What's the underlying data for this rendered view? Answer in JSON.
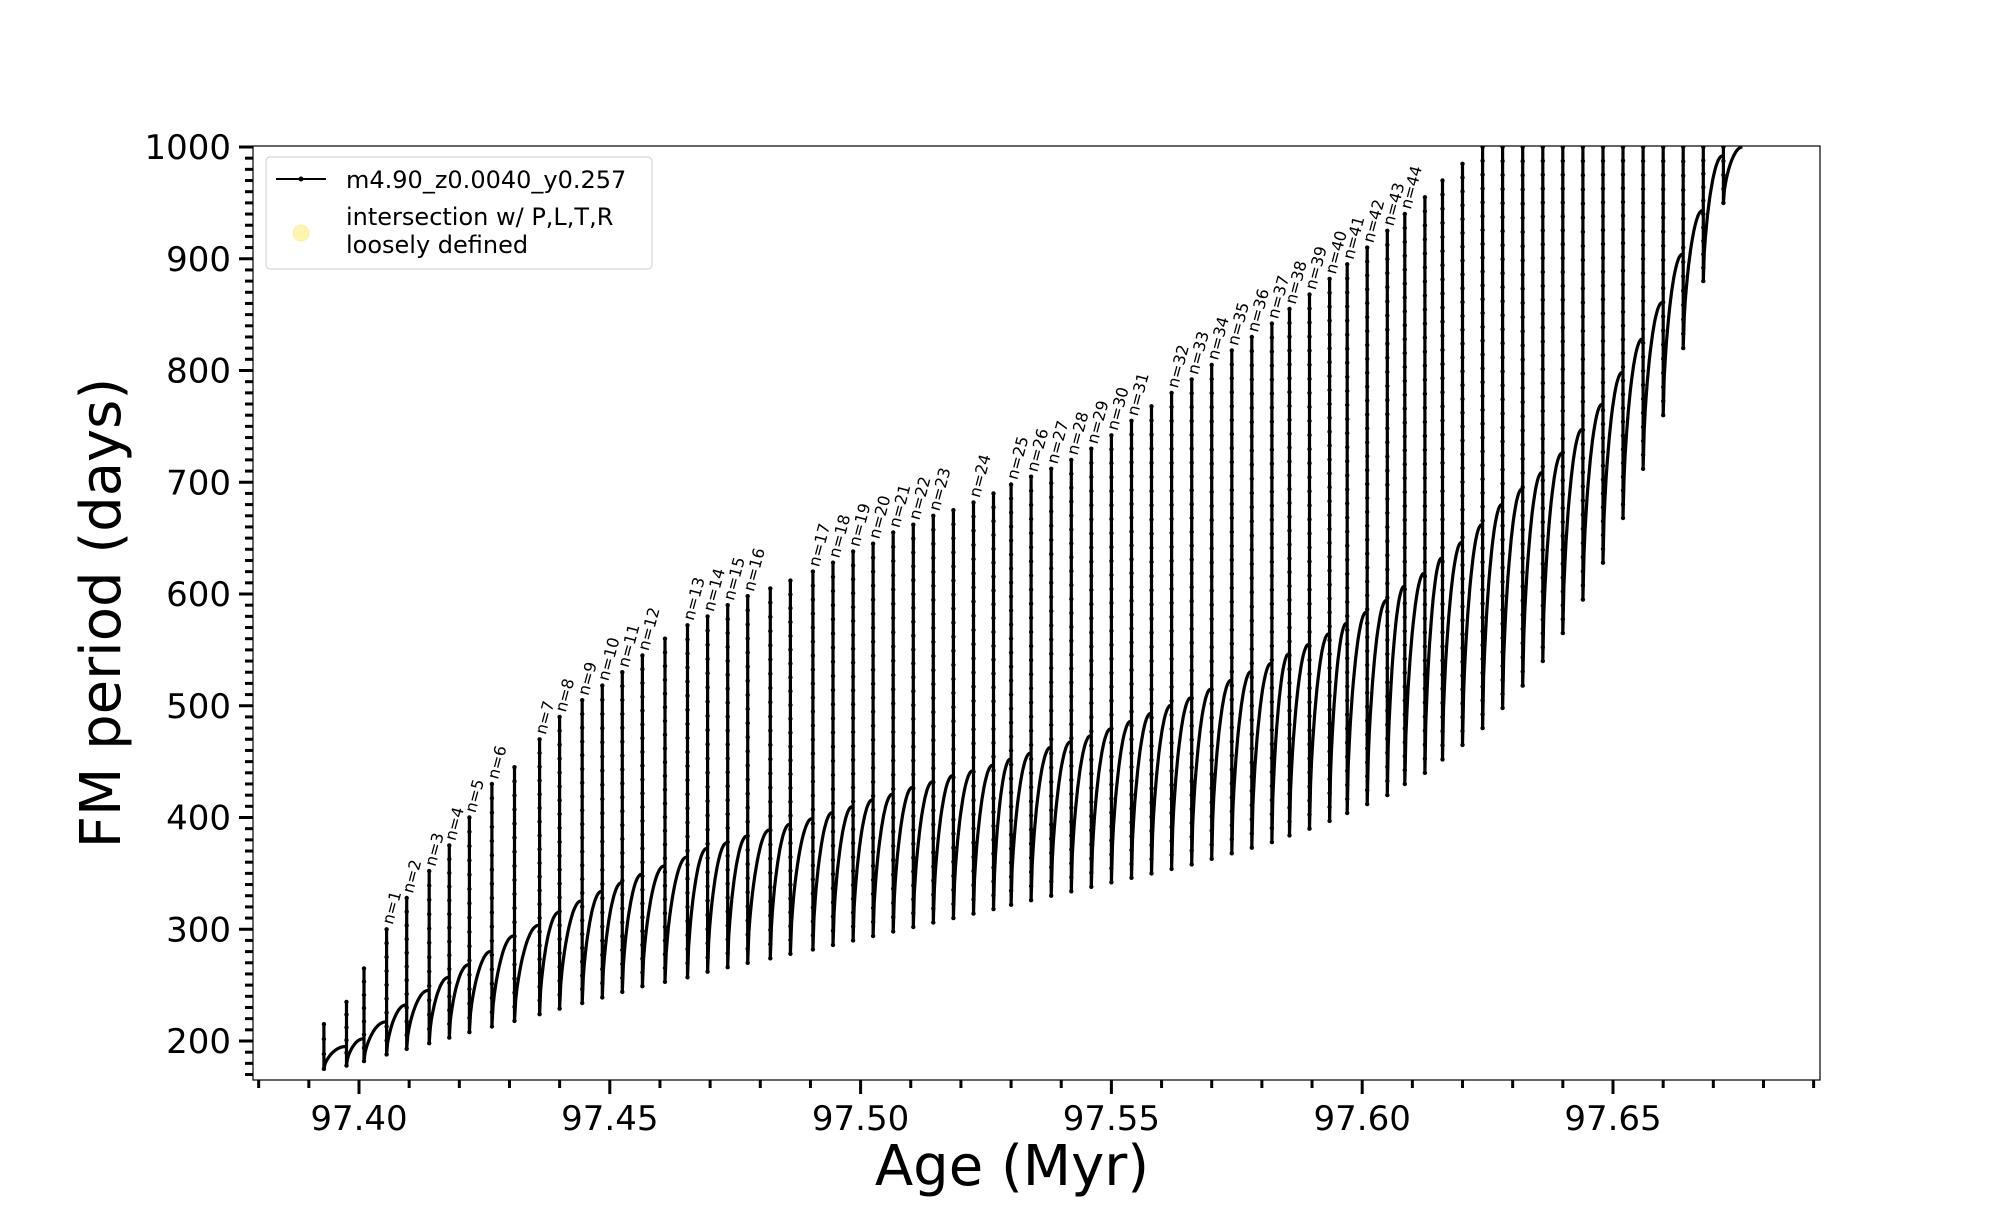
{
  "chart_data": {
    "type": "line",
    "title": "",
    "xlabel": "Age (Myr)",
    "ylabel": "FM period (days)",
    "xlim": [
      97.378,
      97.6915
    ],
    "ylim": [
      165,
      1000
    ],
    "x_ticks": [
      97.4,
      97.45,
      97.5,
      97.55,
      97.6,
      97.65
    ],
    "x_tick_labels": [
      "97.40",
      "97.45",
      "97.50",
      "97.55",
      "97.60",
      "97.65"
    ],
    "y_ticks": [
      200,
      300,
      400,
      500,
      600,
      700,
      800,
      900,
      1000
    ],
    "y_tick_labels": [
      "200",
      "300",
      "400",
      "500",
      "600",
      "700",
      "800",
      "900",
      "1000"
    ],
    "grid": false,
    "legend": {
      "placement": "top-left",
      "entries": [
        {
          "label": "m4.90_z0.0040_y0.257",
          "marker": "line-with-dots",
          "color": "#000000"
        },
        {
          "label": "intersection w/ P,L,T,R loosely defined",
          "label_lines": [
            "intersection w/ P,L,T,R",
            "loosely defined"
          ],
          "marker": "circle",
          "color": "#fff5b0"
        }
      ]
    },
    "series": [
      {
        "name": "m4.90_z0.0040_y0.257",
        "color": "#000000",
        "description": "pulse cycles: each cycle rises along an arc from its minimum to a spike maximum",
        "cycles": [
          {
            "x": 97.393,
            "p_min": 175,
            "p_max": 215
          },
          {
            "x": 97.3975,
            "p_min": 178,
            "p_max": 235
          },
          {
            "x": 97.401,
            "p_min": 182,
            "p_max": 265
          },
          {
            "x": 97.4055,
            "p_min": 188,
            "p_max": 300,
            "n": 1
          },
          {
            "x": 97.4095,
            "p_min": 193,
            "p_max": 328,
            "n": 2
          },
          {
            "x": 97.414,
            "p_min": 198,
            "p_max": 352,
            "n": 3
          },
          {
            "x": 97.418,
            "p_min": 203,
            "p_max": 375,
            "n": 4
          },
          {
            "x": 97.422,
            "p_min": 208,
            "p_max": 400,
            "n": 5
          },
          {
            "x": 97.4265,
            "p_min": 213,
            "p_max": 430,
            "n": 6
          },
          {
            "x": 97.431,
            "p_min": 218,
            "p_max": 445
          },
          {
            "x": 97.436,
            "p_min": 224,
            "p_max": 470,
            "n": 7
          },
          {
            "x": 97.44,
            "p_min": 229,
            "p_max": 490,
            "n": 8
          },
          {
            "x": 97.4445,
            "p_min": 234,
            "p_max": 505,
            "n": 9
          },
          {
            "x": 97.4485,
            "p_min": 239,
            "p_max": 518,
            "n": 10
          },
          {
            "x": 97.4525,
            "p_min": 244,
            "p_max": 530,
            "n": 11
          },
          {
            "x": 97.4565,
            "p_min": 249,
            "p_max": 545,
            "n": 12
          },
          {
            "x": 97.461,
            "p_min": 253,
            "p_max": 560
          },
          {
            "x": 97.4655,
            "p_min": 257,
            "p_max": 572,
            "n": 13
          },
          {
            "x": 97.4695,
            "p_min": 262,
            "p_max": 580,
            "n": 14
          },
          {
            "x": 97.4735,
            "p_min": 266,
            "p_max": 590,
            "n": 15
          },
          {
            "x": 97.4775,
            "p_min": 270,
            "p_max": 598,
            "n": 16
          },
          {
            "x": 97.482,
            "p_min": 274,
            "p_max": 605
          },
          {
            "x": 97.486,
            "p_min": 278,
            "p_max": 612
          },
          {
            "x": 97.4905,
            "p_min": 282,
            "p_max": 620,
            "n": 17
          },
          {
            "x": 97.4945,
            "p_min": 286,
            "p_max": 628,
            "n": 18
          },
          {
            "x": 97.4985,
            "p_min": 290,
            "p_max": 638,
            "n": 19
          },
          {
            "x": 97.5025,
            "p_min": 294,
            "p_max": 645,
            "n": 20
          },
          {
            "x": 97.5065,
            "p_min": 298,
            "p_max": 655,
            "n": 21
          },
          {
            "x": 97.5105,
            "p_min": 302,
            "p_max": 662,
            "n": 22
          },
          {
            "x": 97.5145,
            "p_min": 306,
            "p_max": 670,
            "n": 23
          },
          {
            "x": 97.5185,
            "p_min": 310,
            "p_max": 675
          },
          {
            "x": 97.5225,
            "p_min": 314,
            "p_max": 682,
            "n": 24
          },
          {
            "x": 97.5265,
            "p_min": 318,
            "p_max": 690
          },
          {
            "x": 97.53,
            "p_min": 322,
            "p_max": 698,
            "n": 25
          },
          {
            "x": 97.534,
            "p_min": 326,
            "p_max": 705,
            "n": 26
          },
          {
            "x": 97.538,
            "p_min": 330,
            "p_max": 712,
            "n": 27
          },
          {
            "x": 97.542,
            "p_min": 334,
            "p_max": 720,
            "n": 28
          },
          {
            "x": 97.546,
            "p_min": 338,
            "p_max": 730,
            "n": 29
          },
          {
            "x": 97.55,
            "p_min": 342,
            "p_max": 742,
            "n": 30
          },
          {
            "x": 97.554,
            "p_min": 346,
            "p_max": 755,
            "n": 31
          },
          {
            "x": 97.558,
            "p_min": 350,
            "p_max": 768
          },
          {
            "x": 97.562,
            "p_min": 354,
            "p_max": 780,
            "n": 32
          },
          {
            "x": 97.566,
            "p_min": 358,
            "p_max": 792,
            "n": 33
          },
          {
            "x": 97.57,
            "p_min": 363,
            "p_max": 805,
            "n": 34
          },
          {
            "x": 97.574,
            "p_min": 368,
            "p_max": 818,
            "n": 35
          },
          {
            "x": 97.578,
            "p_min": 373,
            "p_max": 830,
            "n": 36
          },
          {
            "x": 97.582,
            "p_min": 378,
            "p_max": 842,
            "n": 37
          },
          {
            "x": 97.5855,
            "p_min": 384,
            "p_max": 855,
            "n": 38
          },
          {
            "x": 97.5895,
            "p_min": 390,
            "p_max": 868,
            "n": 39
          },
          {
            "x": 97.5935,
            "p_min": 397,
            "p_max": 882,
            "n": 40
          },
          {
            "x": 97.597,
            "p_min": 404,
            "p_max": 895,
            "n": 41
          },
          {
            "x": 97.601,
            "p_min": 412,
            "p_max": 910,
            "n": 42
          },
          {
            "x": 97.605,
            "p_min": 420,
            "p_max": 925,
            "n": 43
          },
          {
            "x": 97.6085,
            "p_min": 430,
            "p_max": 940,
            "n": 44
          },
          {
            "x": 97.6125,
            "p_min": 440,
            "p_max": 955
          },
          {
            "x": 97.616,
            "p_min": 452,
            "p_max": 970
          },
          {
            "x": 97.62,
            "p_min": 465,
            "p_max": 985
          },
          {
            "x": 97.624,
            "p_min": 480,
            "p_max": 1000
          },
          {
            "x": 97.628,
            "p_min": 498,
            "p_max": 1000
          },
          {
            "x": 97.632,
            "p_min": 518,
            "p_max": 1000
          },
          {
            "x": 97.636,
            "p_min": 540,
            "p_max": 1000
          },
          {
            "x": 97.64,
            "p_min": 565,
            "p_max": 1000
          },
          {
            "x": 97.644,
            "p_min": 595,
            "p_max": 1000
          },
          {
            "x": 97.648,
            "p_min": 628,
            "p_max": 1000
          },
          {
            "x": 97.652,
            "p_min": 668,
            "p_max": 1000
          },
          {
            "x": 97.656,
            "p_min": 712,
            "p_max": 1000
          },
          {
            "x": 97.66,
            "p_min": 760,
            "p_max": 1000
          },
          {
            "x": 97.664,
            "p_min": 820,
            "p_max": 1000
          },
          {
            "x": 97.668,
            "p_min": 880,
            "p_max": 1000
          },
          {
            "x": 97.672,
            "p_min": 950,
            "p_max": 1000
          }
        ]
      }
    ],
    "annotations": [
      "n=1",
      "n=2",
      "n=3",
      "n=4",
      "n=5",
      "n=6",
      "n=7",
      "n=8",
      "n=9",
      "n=10",
      "n=11",
      "n=12",
      "n=13",
      "n=14",
      "n=15",
      "n=16",
      "n=17",
      "n=18",
      "n=19",
      "n=20",
      "n=21",
      "n=22",
      "n=23",
      "n=24",
      "n=25",
      "n=26",
      "n=27",
      "n=28",
      "n=29",
      "n=30",
      "n=31",
      "n=32",
      "n=33",
      "n=34",
      "n=35",
      "n=36",
      "n=37",
      "n=38",
      "n=39",
      "n=40",
      "n=41",
      "n=42",
      "n=43",
      "n=44"
    ]
  }
}
